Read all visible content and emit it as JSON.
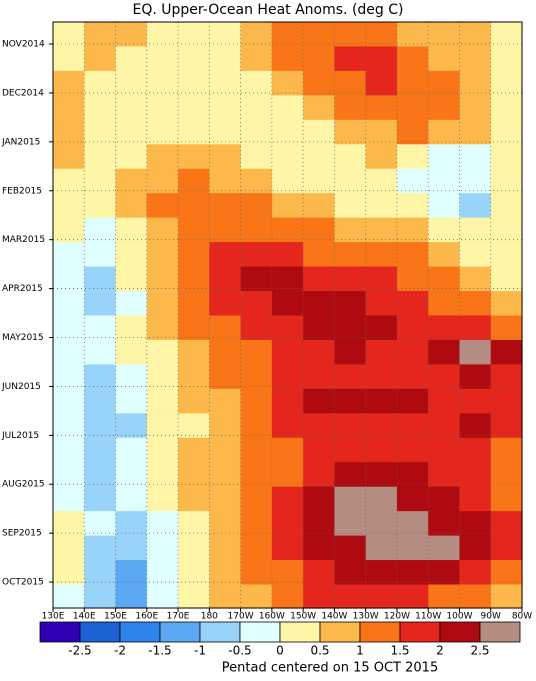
{
  "chart_data": {
    "type": "heatmap",
    "title": "EQ. Upper-Ocean Heat Anoms. (deg C)",
    "x_label": "Pentad centered on 15 OCT 2015",
    "x": [
      135,
      145,
      155,
      165,
      175,
      185,
      195,
      205,
      215,
      225,
      235,
      245,
      255,
      265,
      275
    ],
    "y": [
      -0.2,
      0.3,
      0.8,
      1.3,
      1.8,
      2.3,
      2.8,
      3.3,
      3.8,
      4.3,
      4.8,
      5.3,
      5.8,
      6.3,
      6.8,
      7.3,
      7.8,
      8.3,
      8.8,
      9.3,
      9.8,
      10.3,
      10.8,
      11.3
    ],
    "xlim": [
      130,
      280
    ],
    "ylim": [
      -0.45,
      11.53
    ],
    "xticks": [
      {
        "value": 130,
        "label": "130E"
      },
      {
        "value": 140,
        "label": "140E"
      },
      {
        "value": 150,
        "label": "150E"
      },
      {
        "value": 160,
        "label": "160E"
      },
      {
        "value": 170,
        "label": "170E"
      },
      180,
      {
        "value": 190,
        "label": "170W"
      },
      {
        "value": 200,
        "label": "160W"
      },
      {
        "value": 210,
        "label": "150W"
      },
      {
        "value": 220,
        "label": "140W"
      },
      {
        "value": 230,
        "label": "130W"
      },
      {
        "value": 240,
        "label": "120W"
      },
      {
        "value": 250,
        "label": "110W"
      },
      {
        "value": 260,
        "label": "100W"
      },
      {
        "value": 270,
        "label": "90W"
      },
      {
        "value": 280,
        "label": "80W"
      }
    ],
    "yticks": [
      {
        "value": 0,
        "label": "NOV2014"
      },
      {
        "value": 1,
        "label": "DEC2014"
      },
      {
        "value": 2,
        "label": "JAN2015"
      },
      {
        "value": 3,
        "label": "FEB2015"
      },
      {
        "value": 4,
        "label": "MAR2015"
      },
      {
        "value": 5,
        "label": "APR2015"
      },
      {
        "value": 6,
        "label": "MAY2015"
      },
      {
        "value": 7,
        "label": "JUN2015"
      },
      {
        "value": 8,
        "label": "JUL2015"
      },
      {
        "value": 9,
        "label": "AUG2015"
      },
      {
        "value": 10,
        "label": "SEP2015"
      },
      {
        "value": 11,
        "label": "OCT2015"
      }
    ],
    "grid": true,
    "z": [
      [
        0.2,
        0.7,
        0.7,
        0.2,
        0.2,
        0.2,
        0.7,
        1.2,
        1.2,
        1.2,
        1.2,
        0.7,
        0.7,
        0.7,
        0.2
      ],
      [
        0.2,
        0.7,
        0.2,
        0.2,
        0.2,
        0.2,
        0.7,
        1.2,
        1.2,
        1.7,
        1.7,
        1.2,
        0.7,
        0.7,
        0.2
      ],
      [
        0.7,
        0.2,
        0.2,
        0.2,
        0.2,
        0.2,
        0.2,
        0.7,
        1.2,
        1.2,
        1.7,
        1.2,
        1.2,
        0.7,
        0.2
      ],
      [
        0.7,
        0.2,
        0.2,
        0.2,
        0.2,
        0.2,
        0.2,
        0.2,
        0.7,
        1.2,
        1.2,
        1.2,
        1.2,
        0.7,
        0.2
      ],
      [
        0.7,
        0.2,
        0.2,
        0.2,
        0.2,
        0.2,
        0.2,
        0.2,
        0.2,
        0.7,
        0.7,
        1.2,
        0.7,
        0.7,
        0.2
      ],
      [
        0.7,
        0.2,
        0.2,
        0.7,
        0.7,
        0.7,
        0.2,
        0.2,
        0.2,
        0.2,
        0.7,
        0.2,
        -0.2,
        -0.2,
        0.2
      ],
      [
        0.2,
        0.2,
        0.7,
        0.7,
        1.2,
        0.7,
        0.7,
        0.2,
        0.2,
        0.2,
        0.2,
        -0.2,
        -0.2,
        -0.2,
        0.2
      ],
      [
        0.2,
        0.2,
        0.7,
        1.2,
        1.2,
        1.2,
        1.2,
        0.7,
        0.7,
        0.2,
        0.2,
        0.2,
        -0.2,
        -0.7,
        0.2
      ],
      [
        0.2,
        -0.2,
        0.2,
        0.7,
        1.2,
        1.2,
        1.2,
        1.2,
        1.2,
        0.7,
        0.7,
        0.7,
        0.2,
        0.2,
        0.2
      ],
      [
        -0.2,
        -0.2,
        0.2,
        0.7,
        1.2,
        1.7,
        1.7,
        1.7,
        1.2,
        1.2,
        1.2,
        1.2,
        0.7,
        0.2,
        0.2
      ],
      [
        -0.2,
        -0.7,
        0.2,
        0.7,
        1.2,
        1.7,
        2.2,
        2.2,
        1.7,
        1.7,
        1.7,
        1.2,
        1.2,
        0.7,
        0.2
      ],
      [
        -0.2,
        -0.7,
        -0.2,
        0.7,
        1.2,
        1.7,
        1.7,
        2.2,
        2.2,
        2.2,
        1.7,
        1.7,
        1.2,
        1.2,
        0.7
      ],
      [
        -0.2,
        -0.2,
        0.2,
        0.7,
        1.2,
        1.2,
        1.7,
        1.7,
        2.2,
        2.2,
        2.2,
        1.7,
        1.7,
        1.7,
        1.2
      ],
      [
        -0.2,
        -0.2,
        0.2,
        0.2,
        0.7,
        1.2,
        1.2,
        1.7,
        1.7,
        2.2,
        1.7,
        1.7,
        2.2,
        2.7,
        2.2
      ],
      [
        -0.2,
        -0.7,
        -0.2,
        0.2,
        0.7,
        1.2,
        1.2,
        1.7,
        1.7,
        1.7,
        1.7,
        1.7,
        1.7,
        2.2,
        1.7
      ],
      [
        -0.2,
        -0.7,
        -0.2,
        0.2,
        0.7,
        0.7,
        1.2,
        1.7,
        2.2,
        2.2,
        2.2,
        2.2,
        1.7,
        1.7,
        1.7
      ],
      [
        -0.2,
        -0.7,
        -0.7,
        0.2,
        0.2,
        0.7,
        1.2,
        1.7,
        1.7,
        1.7,
        1.7,
        1.7,
        1.7,
        2.2,
        1.7
      ],
      [
        -0.2,
        -0.7,
        -0.2,
        0.2,
        0.7,
        0.7,
        1.2,
        1.2,
        1.7,
        1.7,
        1.7,
        1.7,
        1.7,
        1.7,
        1.2
      ],
      [
        -0.2,
        -0.7,
        -0.2,
        0.2,
        0.7,
        0.7,
        1.2,
        1.2,
        1.7,
        2.2,
        2.2,
        2.2,
        1.7,
        1.7,
        1.2
      ],
      [
        -0.2,
        -0.7,
        -0.2,
        0.2,
        0.7,
        0.7,
        1.2,
        1.7,
        2.2,
        2.7,
        2.7,
        2.2,
        2.2,
        1.7,
        1.2
      ],
      [
        0.2,
        -0.2,
        -0.7,
        -0.2,
        0.2,
        0.7,
        1.2,
        1.7,
        2.2,
        2.7,
        2.7,
        2.7,
        2.2,
        2.2,
        1.7
      ],
      [
        0.2,
        -0.7,
        -0.7,
        -0.2,
        0.2,
        0.7,
        1.2,
        1.7,
        2.2,
        2.2,
        2.7,
        2.7,
        2.7,
        2.2,
        1.7
      ],
      [
        0.2,
        -0.7,
        -1.2,
        -0.2,
        0.2,
        0.7,
        1.2,
        1.2,
        1.7,
        2.2,
        2.2,
        2.2,
        2.2,
        1.7,
        1.2
      ],
      [
        -0.2,
        -0.7,
        -1.2,
        -0.2,
        0.2,
        0.7,
        0.7,
        1.2,
        1.7,
        1.7,
        1.7,
        1.7,
        1.2,
        1.2,
        0.7
      ]
    ],
    "colorbar": {
      "levels": [
        -2.5,
        -2,
        -1.5,
        -1,
        -0.5,
        0,
        0.5,
        1,
        1.5,
        2,
        2.5
      ],
      "colors": [
        "#2e00b4",
        "#1c62d4",
        "#2f86ea",
        "#5ca8f2",
        "#98d4fa",
        "#e0ffff",
        "#fff5a6",
        "#fcb84a",
        "#fa7518",
        "#e4261c",
        "#ae0a10",
        "#b48c82"
      ]
    }
  }
}
